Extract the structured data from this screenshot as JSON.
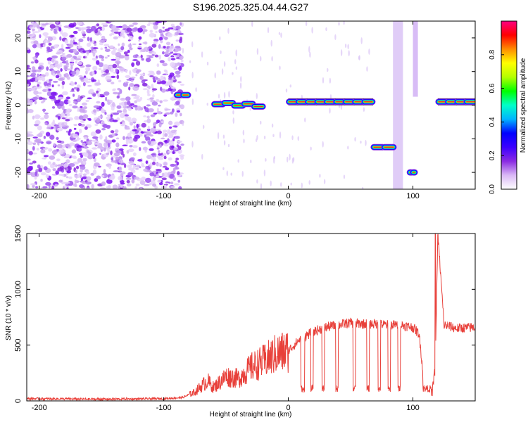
{
  "title": "S196.2025.325.04.44.G27",
  "chart_data": [
    {
      "type": "heatmap",
      "xlabel": "Height of straight line (km)",
      "ylabel": "Frequency (Hz)",
      "xlim": [
        -210,
        150
      ],
      "ylim": [
        -25,
        25
      ],
      "xticks": [
        -200,
        -100,
        0,
        100
      ],
      "yticks": [
        -20,
        -10,
        0,
        10,
        20
      ],
      "colorbar": {
        "label": "Normalized spectral amplitude",
        "range": [
          0,
          1
        ],
        "ticks": [
          "0.0",
          "0.2",
          "0.4",
          "0.6",
          "0.8"
        ],
        "colors": [
          "#ffffff",
          "#d9b8f5",
          "#8a2be2",
          "#3b00ff",
          "#0000ff",
          "#00b4ff",
          "#00ffc8",
          "#00ff00",
          "#b4ff00",
          "#ffff00",
          "#ff8c00",
          "#ff0000",
          "#ff0080"
        ]
      },
      "tones": [
        {
          "x0": -90,
          "x1": -80,
          "freq": 3
        },
        {
          "x0": -60,
          "x1": -20,
          "freq": 0
        },
        {
          "x0": 0,
          "x1": 68,
          "freq": 1
        },
        {
          "x0": 68,
          "x1": 85,
          "freq": -12.5
        },
        {
          "x0": 97,
          "x1": 102,
          "freq": -20
        },
        {
          "x0": 120,
          "x1": 150,
          "freq": 1
        }
      ],
      "grid": false
    },
    {
      "type": "line",
      "xlabel": "Height of straight line (km)",
      "ylabel": "SNR (10 * v/v)",
      "xlim": [
        -210,
        150
      ],
      "ylim": [
        0,
        1500
      ],
      "xticks": [
        -200,
        -100,
        0,
        100
      ],
      "yticks": [
        0,
        500,
        1000,
        1500
      ],
      "color": "#e8403a",
      "grid": false,
      "x": [
        -210,
        -150,
        -100,
        -85,
        -75,
        -65,
        -60,
        -50,
        -40,
        -30,
        -20,
        -10,
        0,
        10,
        20,
        30,
        40,
        50,
        60,
        70,
        80,
        90,
        100,
        105,
        110,
        115,
        118,
        120,
        125,
        135,
        150
      ],
      "y": [
        20,
        15,
        20,
        30,
        80,
        180,
        120,
        220,
        200,
        300,
        350,
        420,
        450,
        560,
        620,
        660,
        680,
        700,
        690,
        690,
        680,
        680,
        660,
        600,
        50,
        40,
        300,
        1500,
        680,
        650,
        660
      ]
    }
  ]
}
